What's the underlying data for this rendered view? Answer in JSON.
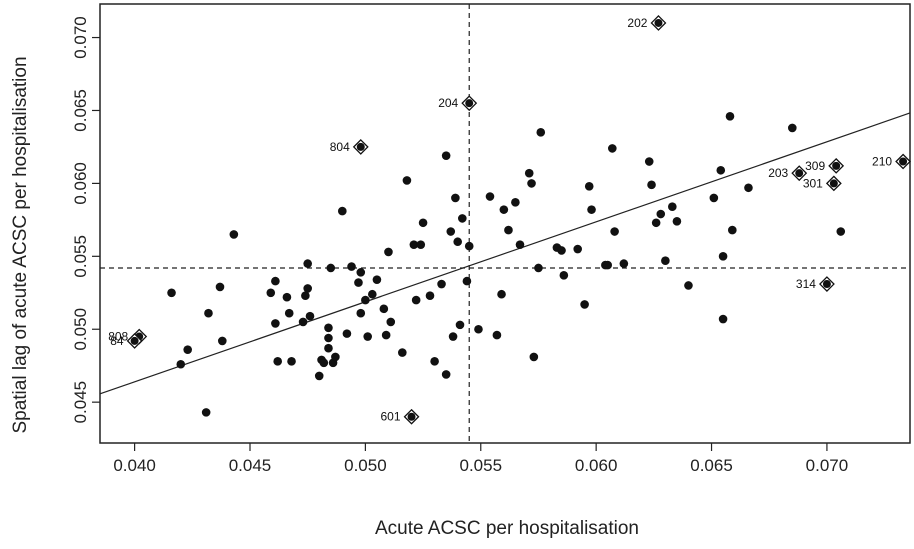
{
  "chart_data": {
    "type": "scatter",
    "title": "",
    "xlabel": "Acute ACSC  per hospitalisation",
    "ylabel": "Spatial lag of acute ACSC  per hospitalisation",
    "xlim": [
      0.0385,
      0.0736
    ],
    "ylim": [
      0.0422,
      0.0723
    ],
    "x_ticks": [
      "0.040",
      "0.045",
      "0.050",
      "0.055",
      "0.060",
      "0.065",
      "0.070"
    ],
    "y_ticks": [
      "0.045",
      "0.050",
      "0.055",
      "0.060",
      "0.065",
      "0.070"
    ],
    "x_tick_values": [
      0.04,
      0.045,
      0.05,
      0.055,
      0.06,
      0.065,
      0.07
    ],
    "y_tick_values": [
      0.045,
      0.05,
      0.055,
      0.06,
      0.065,
      0.07
    ],
    "grid": false,
    "reference_lines": {
      "x_mean": 0.0545,
      "y_mean": 0.0542
    },
    "regression_line": {
      "intercept": 0.02445,
      "slope": 0.5486
    },
    "points": [
      [
        0.0416,
        0.0525
      ],
      [
        0.042,
        0.0476
      ],
      [
        0.0423,
        0.0486
      ],
      [
        0.0431,
        0.0443
      ],
      [
        0.0432,
        0.0511
      ],
      [
        0.0437,
        0.0529
      ],
      [
        0.0438,
        0.0492
      ],
      [
        0.0443,
        0.0565
      ],
      [
        0.0459,
        0.0525
      ],
      [
        0.0461,
        0.0504
      ],
      [
        0.0461,
        0.0533
      ],
      [
        0.0462,
        0.0478
      ],
      [
        0.0466,
        0.0522
      ],
      [
        0.0467,
        0.0511
      ],
      [
        0.0468,
        0.0478
      ],
      [
        0.0473,
        0.0505
      ],
      [
        0.0474,
        0.0523
      ],
      [
        0.0475,
        0.0528
      ],
      [
        0.0475,
        0.0545
      ],
      [
        0.0476,
        0.0509
      ],
      [
        0.048,
        0.0468
      ],
      [
        0.0481,
        0.0479
      ],
      [
        0.0482,
        0.0477
      ],
      [
        0.0484,
        0.0487
      ],
      [
        0.0484,
        0.0494
      ],
      [
        0.0484,
        0.0501
      ],
      [
        0.0485,
        0.0542
      ],
      [
        0.0486,
        0.0477
      ],
      [
        0.0487,
        0.0481
      ],
      [
        0.049,
        0.0581
      ],
      [
        0.0492,
        0.0497
      ],
      [
        0.0494,
        0.0543
      ],
      [
        0.0497,
        0.0532
      ],
      [
        0.0498,
        0.0511
      ],
      [
        0.0498,
        0.0539
      ],
      [
        0.05,
        0.052
      ],
      [
        0.0501,
        0.0495
      ],
      [
        0.0503,
        0.0524
      ],
      [
        0.0505,
        0.0534
      ],
      [
        0.0508,
        0.0514
      ],
      [
        0.0509,
        0.0496
      ],
      [
        0.051,
        0.0553
      ],
      [
        0.0511,
        0.0505
      ],
      [
        0.0516,
        0.0484
      ],
      [
        0.0518,
        0.0602
      ],
      [
        0.0521,
        0.0558
      ],
      [
        0.0522,
        0.052
      ],
      [
        0.0524,
        0.0558
      ],
      [
        0.0525,
        0.0573
      ],
      [
        0.0528,
        0.0523
      ],
      [
        0.053,
        0.0478
      ],
      [
        0.0533,
        0.0531
      ],
      [
        0.0535,
        0.0619
      ],
      [
        0.0535,
        0.0469
      ],
      [
        0.0537,
        0.0567
      ],
      [
        0.0538,
        0.0495
      ],
      [
        0.0539,
        0.059
      ],
      [
        0.054,
        0.056
      ],
      [
        0.0541,
        0.0503
      ],
      [
        0.0542,
        0.0576
      ],
      [
        0.0544,
        0.0533
      ],
      [
        0.0545,
        0.0557
      ],
      [
        0.0549,
        0.05
      ],
      [
        0.0554,
        0.0591
      ],
      [
        0.0557,
        0.0496
      ],
      [
        0.0559,
        0.0524
      ],
      [
        0.056,
        0.0582
      ],
      [
        0.0562,
        0.0568
      ],
      [
        0.0565,
        0.0587
      ],
      [
        0.0567,
        0.0558
      ],
      [
        0.0571,
        0.0607
      ],
      [
        0.0572,
        0.06
      ],
      [
        0.0573,
        0.0481
      ],
      [
        0.0575,
        0.0542
      ],
      [
        0.0576,
        0.0635
      ],
      [
        0.0583,
        0.0556
      ],
      [
        0.0585,
        0.0554
      ],
      [
        0.0586,
        0.0537
      ],
      [
        0.0592,
        0.0555
      ],
      [
        0.0595,
        0.0517
      ],
      [
        0.0597,
        0.0598
      ],
      [
        0.0598,
        0.0582
      ],
      [
        0.0604,
        0.0544
      ],
      [
        0.0605,
        0.0544
      ],
      [
        0.0607,
        0.0624
      ],
      [
        0.0608,
        0.0567
      ],
      [
        0.0612,
        0.0545
      ],
      [
        0.0623,
        0.0615
      ],
      [
        0.0624,
        0.0599
      ],
      [
        0.0626,
        0.0573
      ],
      [
        0.0628,
        0.0579
      ],
      [
        0.063,
        0.0547
      ],
      [
        0.0633,
        0.0584
      ],
      [
        0.0635,
        0.0574
      ],
      [
        0.064,
        0.053
      ],
      [
        0.0651,
        0.059
      ],
      [
        0.0654,
        0.0609
      ],
      [
        0.0655,
        0.0507
      ],
      [
        0.0655,
        0.055
      ],
      [
        0.0658,
        0.0646
      ],
      [
        0.0659,
        0.0568
      ],
      [
        0.0666,
        0.0597
      ],
      [
        0.0685,
        0.0638
      ],
      [
        0.0706,
        0.0567
      ]
    ],
    "labeled_points": [
      {
        "label": "202",
        "x": 0.0627,
        "y": 0.071
      },
      {
        "label": "204",
        "x": 0.0545,
        "y": 0.0655
      },
      {
        "label": "804",
        "x": 0.0498,
        "y": 0.0625
      },
      {
        "label": "203",
        "x": 0.0688,
        "y": 0.0607
      },
      {
        "label": "309",
        "x": 0.0704,
        "y": 0.0612
      },
      {
        "label": "301",
        "x": 0.0703,
        "y": 0.06
      },
      {
        "label": "210",
        "x": 0.0733,
        "y": 0.0615
      },
      {
        "label": "314",
        "x": 0.07,
        "y": 0.0531
      },
      {
        "label": "601",
        "x": 0.052,
        "y": 0.044
      },
      {
        "label": "808",
        "x": 0.0402,
        "y": 0.0495
      },
      {
        "label": "84",
        "x": 0.04,
        "y": 0.0492
      }
    ]
  }
}
